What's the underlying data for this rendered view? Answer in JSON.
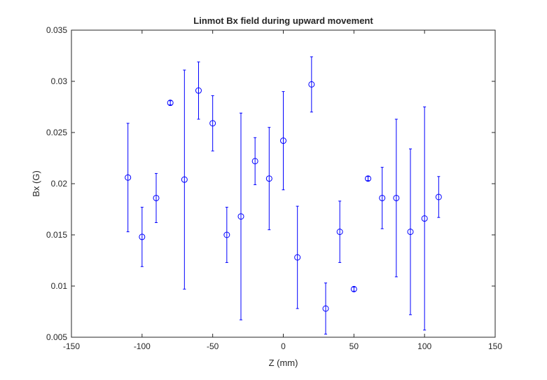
{
  "chart_data": {
    "type": "errorbar",
    "title": "Linmot Bx field during upward movement",
    "xlabel": "Z (mm)",
    "ylabel": "Bx (G)",
    "x": [
      -110,
      -100,
      -90,
      -80,
      -70,
      -60,
      -50,
      -40,
      -30,
      -20,
      -10,
      0,
      10,
      20,
      30,
      40,
      50,
      60,
      70,
      80,
      90,
      100,
      110
    ],
    "series": [
      {
        "color": "#0000ff",
        "values": [
          0.0206,
          0.0148,
          0.0186,
          0.0279,
          0.0204,
          0.0291,
          0.0259,
          0.015,
          0.0168,
          0.0222,
          0.0205,
          0.0242,
          0.0128,
          0.0297,
          0.0078,
          0.0153,
          0.0097,
          0.0205,
          0.0186,
          0.0186,
          0.0153,
          0.0166,
          0.0187
        ],
        "errors": [
          0.0053,
          0.0029,
          0.0024,
          0.0002,
          0.0107,
          0.0028,
          0.0027,
          0.0027,
          0.0101,
          0.0023,
          0.005,
          0.0048,
          0.005,
          0.0027,
          0.0025,
          0.003,
          0.0002,
          0.0002,
          0.003,
          0.0077,
          0.0081,
          0.0109,
          0.002
        ]
      }
    ],
    "xlim": [
      -150,
      150
    ],
    "xticks": [
      -150,
      -100,
      -50,
      0,
      50,
      100,
      150
    ],
    "ylim": [
      0.005,
      0.035
    ],
    "yticks": [
      0.005,
      0.01,
      0.015,
      0.02,
      0.025,
      0.03,
      0.035
    ],
    "grid": false
  }
}
